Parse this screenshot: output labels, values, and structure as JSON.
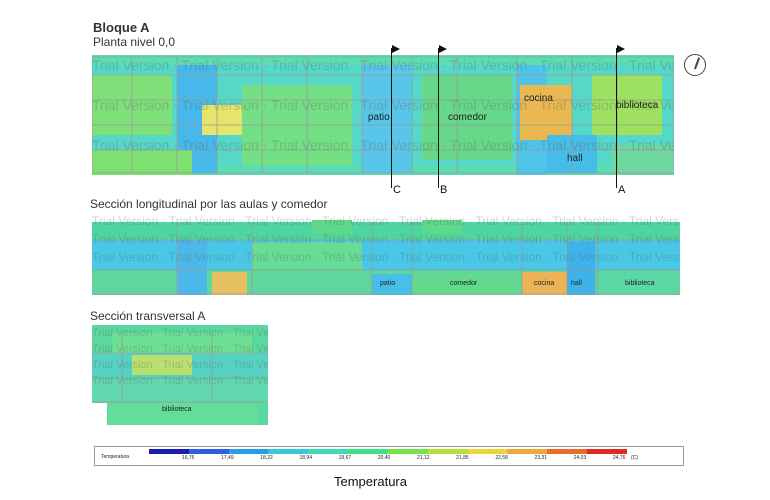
{
  "header": {
    "title": "Bloque A",
    "subtitle": "Planta nivel 0,0"
  },
  "plan": {
    "rooms": {
      "patio": "patio",
      "comedor": "comedor",
      "cocina": "cocina",
      "biblioteca": "biblioteca",
      "hall": "hall"
    },
    "section_markers": {
      "c": "C",
      "b": "B",
      "a": "A"
    }
  },
  "long_section": {
    "title": "Sección longitudinal por las aulas y comedor",
    "rooms": {
      "patio": "patio",
      "comedor": "comedor",
      "cocina": "cocina",
      "hall": "hall",
      "biblioteca": "biblioteca"
    }
  },
  "trans_section": {
    "title": "Sección transversal A",
    "room": "biblioteca"
  },
  "watermark": "Trial Version",
  "legend": {
    "label": "Temperatura",
    "unit": "(C)",
    "ticks": [
      "16,76",
      "17,49",
      "18,22",
      "18,94",
      "19,67",
      "20,40",
      "21,12",
      "21,85",
      "22,58",
      "23,31",
      "24,03",
      "24,76"
    ],
    "colors": [
      "#1a1ab5",
      "#2e5fe0",
      "#2a9be8",
      "#35c8e0",
      "#3fd8b8",
      "#3fe08a",
      "#79e04a",
      "#b8e03a",
      "#e8d63a",
      "#f0a838",
      "#ec6a2e",
      "#e02a24"
    ]
  },
  "footer_title": "Temperatura"
}
